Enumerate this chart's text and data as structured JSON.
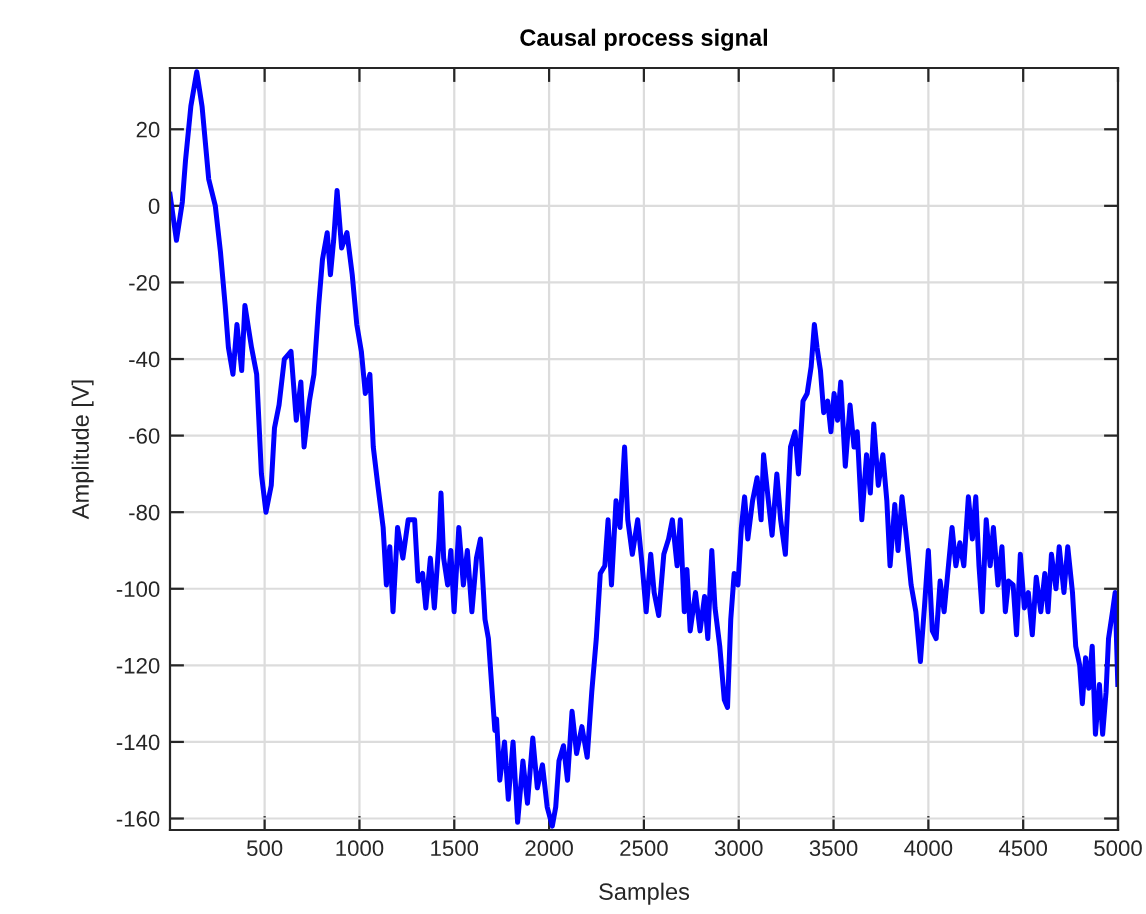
{
  "chart_data": {
    "type": "line",
    "title": "Causal process signal",
    "xlabel": "Samples",
    "ylabel": "Amplitude [V]",
    "xlim": [
      1,
      5000
    ],
    "ylim": [
      -163,
      36
    ],
    "xticks": [
      500,
      1000,
      1500,
      2000,
      2500,
      3000,
      3500,
      4000,
      4500,
      5000
    ],
    "yticks": [
      -160,
      -140,
      -120,
      -100,
      -80,
      -60,
      -40,
      -20,
      0,
      20
    ],
    "grid": true,
    "line_style": "solid",
    "series": [
      {
        "color": "#0000ff",
        "x": [
          1,
          35,
          66,
          83,
          111,
          142,
          170,
          205,
          240,
          267,
          292,
          309,
          333,
          354,
          379,
          396,
          431,
          458,
          483,
          507,
          535,
          552,
          576,
          604,
          639,
          667,
          691,
          708,
          736,
          760,
          785,
          805,
          830,
          847,
          864,
          882,
          906,
          934,
          962,
          986,
          1010,
          1031,
          1055,
          1073,
          1097,
          1125,
          1142,
          1160,
          1177,
          1201,
          1229,
          1257,
          1291,
          1309,
          1333,
          1350,
          1374,
          1395,
          1420,
          1430,
          1444,
          1465,
          1482,
          1499,
          1524,
          1548,
          1569,
          1593,
          1617,
          1638,
          1662,
          1680,
          1697,
          1714,
          1723,
          1740,
          1765,
          1785,
          1810,
          1834,
          1862,
          1886,
          1914,
          1938,
          1965,
          1990,
          2017,
          2035,
          2052,
          2076,
          2097,
          2121,
          2145,
          2173,
          2201,
          2225,
          2249,
          2270,
          2294,
          2311,
          2329,
          2353,
          2374,
          2398,
          2415,
          2439,
          2467,
          2491,
          2512,
          2536,
          2554,
          2578,
          2605,
          2630,
          2650,
          2675,
          2692,
          2713,
          2727,
          2744,
          2772,
          2796,
          2820,
          2837,
          2858,
          2875,
          2900,
          2924,
          2941,
          2958,
          2976,
          2996,
          3014,
          3031,
          3048,
          3073,
          3097,
          3118,
          3131,
          3152,
          3176,
          3201,
          3221,
          3246,
          3273,
          3297,
          3315,
          3339,
          3361,
          3382,
          3399,
          3413,
          3431,
          3448,
          3469,
          3486,
          3503,
          3521,
          3538,
          3562,
          3587,
          3608,
          3625,
          3649,
          3674,
          3694,
          3712,
          3736,
          3760,
          3781,
          3798,
          3823,
          3840,
          3861,
          3885,
          3909,
          3934,
          3958,
          3979,
          4000,
          4021,
          4041,
          4062,
          4083,
          4104,
          4125,
          4145,
          4166,
          4187,
          4211,
          4232,
          4250,
          4267,
          4284,
          4305,
          4326,
          4343,
          4367,
          4388,
          4406,
          4423,
          4447,
          4465,
          4485,
          4506,
          4527,
          4548,
          4569,
          4593,
          4614,
          4631,
          4649,
          4673,
          4690,
          4715,
          4735,
          4760,
          4777,
          4798,
          4812,
          4829,
          4846,
          4864,
          4881,
          4902,
          4919,
          4937,
          4950,
          4971,
          4985,
          4999
        ],
        "values": [
          3,
          -9,
          1,
          12,
          26,
          35,
          26,
          7,
          0,
          -12,
          -26,
          -37,
          -44,
          -31,
          -43,
          -26,
          -37,
          -44,
          -70,
          -80,
          -73,
          -58,
          -52,
          -40,
          -38,
          -56,
          -46,
          -63,
          -51,
          -44,
          -26,
          -14,
          -7,
          -18,
          -9,
          4,
          -11,
          -7,
          -18,
          -31,
          -38,
          -49,
          -44,
          -63,
          -73,
          -84,
          -99,
          -89,
          -106,
          -84,
          -92,
          -82,
          -82,
          -98,
          -96,
          -105,
          -92,
          -105,
          -87,
          -75,
          -92,
          -99,
          -90,
          -106,
          -84,
          -99,
          -90,
          -106,
          -92,
          -87,
          -108,
          -113,
          -125,
          -137,
          -134,
          -150,
          -140,
          -155,
          -140,
          -161,
          -145,
          -156,
          -139,
          -152,
          -146,
          -157,
          -162,
          -157,
          -145,
          -141,
          -150,
          -132,
          -143,
          -136,
          -144,
          -127,
          -113,
          -96,
          -94,
          -82,
          -99,
          -77,
          -84,
          -63,
          -82,
          -91,
          -82,
          -94,
          -106,
          -91,
          -101,
          -107,
          -91,
          -87,
          -82,
          -94,
          -82,
          -106,
          -95,
          -111,
          -101,
          -111,
          -102,
          -113,
          -90,
          -105,
          -115,
          -129,
          -131,
          -108,
          -96,
          -99,
          -84,
          -76,
          -87,
          -77,
          -71,
          -82,
          -65,
          -75,
          -86,
          -70,
          -82,
          -91,
          -63,
          -59,
          -70,
          -51,
          -49,
          -42,
          -31,
          -37,
          -43,
          -54,
          -51,
          -59,
          -49,
          -56,
          -46,
          -68,
          -52,
          -63,
          -59,
          -82,
          -65,
          -75,
          -57,
          -73,
          -65,
          -77,
          -94,
          -78,
          -90,
          -76,
          -87,
          -99,
          -106,
          -119,
          -105,
          -90,
          -111,
          -113,
          -98,
          -106,
          -95,
          -84,
          -94,
          -88,
          -94,
          -76,
          -87,
          -76,
          -94,
          -106,
          -82,
          -94,
          -84,
          -99,
          -89,
          -106,
          -98,
          -99,
          -112,
          -91,
          -105,
          -101,
          -112,
          -97,
          -106,
          -96,
          -106,
          -91,
          -100,
          -89,
          -101,
          -89,
          -101,
          -115,
          -120,
          -130,
          -118,
          -126,
          -115,
          -138,
          -125,
          -138,
          -127,
          -113,
          -106,
          -101,
          -125
        ]
      }
    ]
  }
}
